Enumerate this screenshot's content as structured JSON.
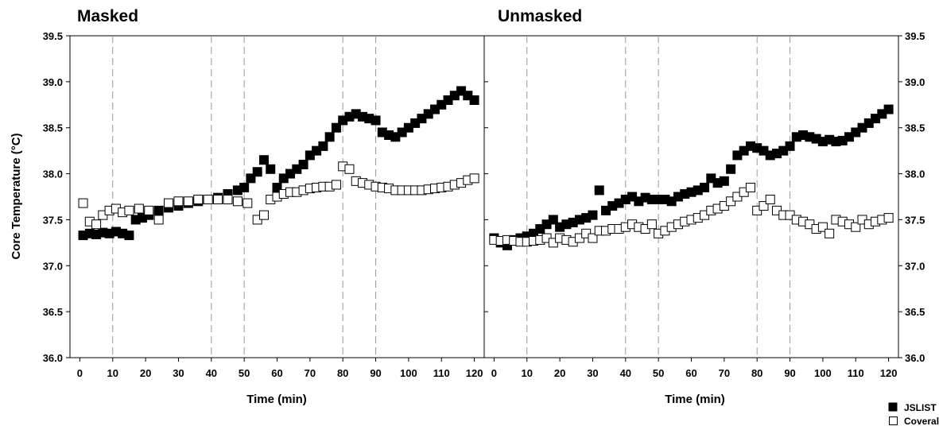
{
  "chart_data": {
    "type": "scatter",
    "ylabel": "Core Temperature (°C)",
    "xlabel": "Time (min)",
    "xticks": [
      0,
      10,
      20,
      30,
      40,
      50,
      60,
      70,
      80,
      90,
      100,
      110,
      120
    ],
    "yticks": [
      36.0,
      36.5,
      37.0,
      37.5,
      38.0,
      38.5,
      39.0,
      39.5
    ],
    "ylim": [
      36.0,
      39.5
    ],
    "xlim": [
      -3,
      123
    ],
    "grid": false,
    "reference_lines_x": [
      10,
      40,
      50,
      80,
      90
    ],
    "legend": {
      "placement": "bottom-right",
      "entries": [
        {
          "label": "JSLIST",
          "marker": "filled-square",
          "color": "#000000"
        },
        {
          "label": "Coveralls",
          "marker": "open-square",
          "color": "#000000"
        }
      ]
    },
    "panels": [
      {
        "title": "Masked",
        "series": [
          {
            "name": "JSLIST",
            "x": [
              1,
              3,
              5,
              7,
              9,
              11,
              13,
              15,
              17,
              19,
              21,
              24,
              27,
              30,
              33,
              36,
              39,
              42,
              45,
              48,
              50,
              52,
              54,
              56,
              58,
              60,
              62,
              64,
              66,
              68,
              70,
              72,
              74,
              76,
              78,
              80,
              82,
              84,
              86,
              88,
              90,
              92,
              94,
              96,
              98,
              100,
              102,
              104,
              106,
              108,
              110,
              112,
              114,
              116,
              118,
              120
            ],
            "y": [
              37.33,
              37.35,
              37.34,
              37.36,
              37.35,
              37.37,
              37.35,
              37.33,
              37.5,
              37.52,
              37.55,
              37.6,
              37.63,
              37.65,
              37.68,
              37.7,
              37.72,
              37.74,
              37.78,
              37.82,
              37.85,
              37.95,
              38.02,
              38.15,
              38.05,
              37.85,
              37.95,
              38.0,
              38.05,
              38.1,
              38.2,
              38.25,
              38.3,
              38.4,
              38.5,
              38.58,
              38.62,
              38.65,
              38.62,
              38.6,
              38.58,
              38.45,
              38.42,
              38.4,
              38.45,
              38.5,
              38.55,
              38.6,
              38.65,
              38.7,
              38.75,
              38.8,
              38.85,
              38.9,
              38.85,
              38.8
            ]
          },
          {
            "name": "Coveralls",
            "x": [
              1,
              3,
              5,
              7,
              9,
              11,
              13,
              15,
              18,
              21,
              24,
              27,
              30,
              33,
              36,
              39,
              42,
              45,
              48,
              51,
              54,
              56,
              58,
              60,
              62,
              64,
              66,
              68,
              70,
              72,
              74,
              76,
              78,
              80,
              82,
              84,
              86,
              88,
              90,
              92,
              94,
              96,
              98,
              100,
              102,
              104,
              106,
              108,
              110,
              112,
              114,
              116,
              118,
              120
            ],
            "y": [
              37.68,
              37.48,
              37.45,
              37.55,
              37.6,
              37.62,
              37.58,
              37.6,
              37.62,
              37.6,
              37.5,
              37.68,
              37.7,
              37.7,
              37.72,
              37.72,
              37.72,
              37.72,
              37.7,
              37.68,
              37.5,
              37.55,
              37.72,
              37.75,
              37.78,
              37.8,
              37.8,
              37.82,
              37.84,
              37.85,
              37.86,
              37.86,
              37.88,
              38.08,
              38.05,
              37.92,
              37.9,
              37.88,
              37.86,
              37.85,
              37.84,
              37.82,
              37.82,
              37.82,
              37.82,
              37.82,
              37.83,
              37.84,
              37.85,
              37.86,
              37.88,
              37.9,
              37.93,
              37.95
            ]
          }
        ]
      },
      {
        "title": "Unmasked",
        "series": [
          {
            "name": "JSLIST",
            "x": [
              0,
              2,
              4,
              6,
              8,
              10,
              12,
              14,
              16,
              18,
              20,
              22,
              24,
              26,
              28,
              30,
              32,
              34,
              36,
              38,
              40,
              42,
              44,
              46,
              48,
              50,
              52,
              54,
              56,
              58,
              60,
              62,
              64,
              66,
              68,
              70,
              72,
              74,
              76,
              78,
              80,
              82,
              84,
              86,
              88,
              90,
              92,
              94,
              96,
              98,
              100,
              102,
              104,
              106,
              108,
              110,
              112,
              114,
              116,
              118,
              120
            ],
            "y": [
              37.3,
              37.25,
              37.22,
              37.28,
              37.3,
              37.32,
              37.35,
              37.4,
              37.45,
              37.5,
              37.42,
              37.45,
              37.47,
              37.5,
              37.52,
              37.55,
              37.82,
              37.6,
              37.65,
              37.68,
              37.72,
              37.75,
              37.7,
              37.74,
              37.72,
              37.72,
              37.72,
              37.7,
              37.75,
              37.78,
              37.8,
              37.82,
              37.85,
              37.95,
              37.9,
              37.92,
              38.05,
              38.2,
              38.25,
              38.3,
              38.28,
              38.25,
              38.2,
              38.22,
              38.25,
              38.3,
              38.4,
              38.42,
              38.4,
              38.38,
              38.35,
              38.37,
              38.35,
              38.36,
              38.4,
              38.45,
              38.5,
              38.55,
              38.6,
              38.65,
              38.7
            ]
          },
          {
            "name": "Coveralls",
            "x": [
              0,
              2,
              4,
              6,
              8,
              10,
              12,
              14,
              16,
              18,
              20,
              22,
              24,
              26,
              28,
              30,
              32,
              34,
              36,
              38,
              40,
              42,
              44,
              46,
              48,
              50,
              52,
              54,
              56,
              58,
              60,
              62,
              64,
              66,
              68,
              70,
              72,
              74,
              76,
              78,
              80,
              82,
              84,
              86,
              88,
              90,
              92,
              94,
              96,
              98,
              100,
              102,
              104,
              106,
              108,
              110,
              112,
              114,
              116,
              118,
              120
            ],
            "y": [
              37.28,
              37.27,
              37.28,
              37.27,
              37.26,
              37.26,
              37.27,
              37.28,
              37.3,
              37.25,
              37.3,
              37.28,
              37.26,
              37.3,
              37.35,
              37.3,
              37.38,
              37.38,
              37.4,
              37.4,
              37.42,
              37.45,
              37.42,
              37.4,
              37.45,
              37.35,
              37.38,
              37.42,
              37.45,
              37.48,
              37.5,
              37.52,
              37.55,
              37.6,
              37.62,
              37.65,
              37.7,
              37.75,
              37.8,
              37.85,
              37.6,
              37.65,
              37.72,
              37.6,
              37.55,
              37.55,
              37.5,
              37.48,
              37.45,
              37.4,
              37.42,
              37.35,
              37.5,
              37.48,
              37.45,
              37.42,
              37.5,
              37.45,
              37.48,
              37.5,
              37.52
            ]
          }
        ]
      }
    ]
  }
}
